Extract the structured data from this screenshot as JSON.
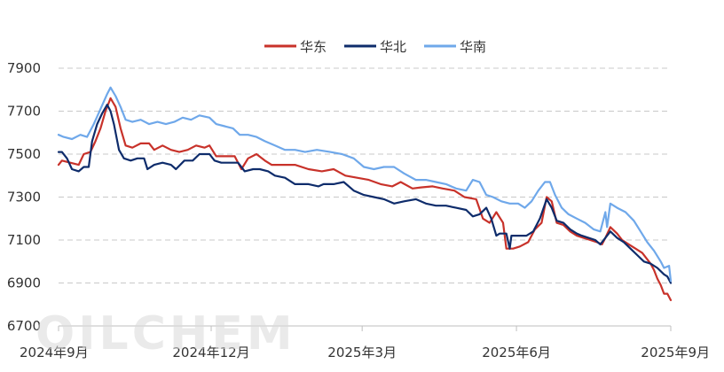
{
  "chart_data": {
    "type": "line",
    "title": "",
    "xlabel": "",
    "ylabel": "",
    "ylim": [
      6700,
      7900
    ],
    "yticks": [
      6700,
      6900,
      7100,
      7300,
      7500,
      7700,
      7900
    ],
    "xlim": [
      "2024-09-01",
      "2025-09-01"
    ],
    "xticks": [
      {
        "date": "2024-09-01",
        "label": "2024年9月"
      },
      {
        "date": "2024-12-01",
        "label": "2024年12月"
      },
      {
        "date": "2025-03-01",
        "label": "2025年3月"
      },
      {
        "date": "2025-06-01",
        "label": "2025年6月"
      },
      {
        "date": "2025-09-01",
        "label": "2025年9月"
      }
    ],
    "grid": "horizontal-dashed",
    "legend_position": "top-center",
    "watermark": "OILCHEM",
    "series": [
      {
        "name": "华东",
        "color": "#c8322a",
        "points": [
          [
            "2024-09-01",
            7450
          ],
          [
            "2024-09-03",
            7470
          ],
          [
            "2024-09-08",
            7460
          ],
          [
            "2024-09-13",
            7450
          ],
          [
            "2024-09-16",
            7500
          ],
          [
            "2024-09-20",
            7510
          ],
          [
            "2024-09-23",
            7560
          ],
          [
            "2024-09-26",
            7620
          ],
          [
            "2024-09-29",
            7700
          ],
          [
            "2024-10-02",
            7760
          ],
          [
            "2024-10-05",
            7720
          ],
          [
            "2024-10-08",
            7620
          ],
          [
            "2024-10-11",
            7540
          ],
          [
            "2024-10-15",
            7530
          ],
          [
            "2024-10-20",
            7550
          ],
          [
            "2024-10-25",
            7550
          ],
          [
            "2024-10-28",
            7520
          ],
          [
            "2024-11-02",
            7540
          ],
          [
            "2024-11-07",
            7520
          ],
          [
            "2024-11-12",
            7510
          ],
          [
            "2024-11-17",
            7520
          ],
          [
            "2024-11-22",
            7540
          ],
          [
            "2024-11-27",
            7530
          ],
          [
            "2024-11-30",
            7540
          ],
          [
            "2024-12-04",
            7490
          ],
          [
            "2024-12-08",
            7490
          ],
          [
            "2024-12-15",
            7490
          ],
          [
            "2024-12-19",
            7430
          ],
          [
            "2024-12-23",
            7480
          ],
          [
            "2024-12-28",
            7500
          ],
          [
            "2025-01-02",
            7470
          ],
          [
            "2025-01-06",
            7450
          ],
          [
            "2025-01-12",
            7450
          ],
          [
            "2025-01-20",
            7450
          ],
          [
            "2025-01-28",
            7430
          ],
          [
            "2025-02-05",
            7420
          ],
          [
            "2025-02-12",
            7430
          ],
          [
            "2025-02-19",
            7400
          ],
          [
            "2025-02-26",
            7390
          ],
          [
            "2025-03-05",
            7380
          ],
          [
            "2025-03-12",
            7360
          ],
          [
            "2025-03-19",
            7350
          ],
          [
            "2025-03-24",
            7370
          ],
          [
            "2025-03-31",
            7340
          ],
          [
            "2025-04-05",
            7345
          ],
          [
            "2025-04-12",
            7350
          ],
          [
            "2025-04-18",
            7340
          ],
          [
            "2025-04-25",
            7330
          ],
          [
            "2025-05-01",
            7300
          ],
          [
            "2025-05-08",
            7290
          ],
          [
            "2025-05-12",
            7200
          ],
          [
            "2025-05-16",
            7180
          ],
          [
            "2025-05-20",
            7230
          ],
          [
            "2025-05-24",
            7180
          ],
          [
            "2025-05-26",
            7060
          ],
          [
            "2025-05-30",
            7060
          ],
          [
            "2025-06-03",
            7070
          ],
          [
            "2025-06-08",
            7090
          ],
          [
            "2025-06-12",
            7150
          ],
          [
            "2025-06-16",
            7180
          ],
          [
            "2025-06-19",
            7300
          ],
          [
            "2025-06-22",
            7280
          ],
          [
            "2025-06-25",
            7180
          ],
          [
            "2025-06-29",
            7170
          ],
          [
            "2025-07-03",
            7140
          ],
          [
            "2025-07-07",
            7120
          ],
          [
            "2025-07-11",
            7110
          ],
          [
            "2025-07-15",
            7100
          ],
          [
            "2025-07-19",
            7090
          ],
          [
            "2025-07-22",
            7080
          ],
          [
            "2025-07-24",
            7110
          ],
          [
            "2025-07-27",
            7160
          ],
          [
            "2025-07-31",
            7130
          ],
          [
            "2025-08-03",
            7100
          ],
          [
            "2025-08-07",
            7080
          ],
          [
            "2025-08-11",
            7060
          ],
          [
            "2025-08-15",
            7040
          ],
          [
            "2025-08-18",
            7010
          ],
          [
            "2025-08-20",
            6990
          ],
          [
            "2025-08-22",
            6960
          ],
          [
            "2025-08-24",
            6920
          ],
          [
            "2025-08-26",
            6890
          ],
          [
            "2025-08-28",
            6850
          ],
          [
            "2025-08-30",
            6850
          ],
          [
            "2025-09-01",
            6820
          ]
        ]
      },
      {
        "name": "华北",
        "color": "#0e2c6b",
        "points": [
          [
            "2024-09-01",
            7510
          ],
          [
            "2024-09-03",
            7510
          ],
          [
            "2024-09-06",
            7480
          ],
          [
            "2024-09-09",
            7430
          ],
          [
            "2024-09-13",
            7420
          ],
          [
            "2024-09-16",
            7440
          ],
          [
            "2024-09-19",
            7440
          ],
          [
            "2024-09-21",
            7560
          ],
          [
            "2024-09-24",
            7640
          ],
          [
            "2024-09-27",
            7690
          ],
          [
            "2024-09-30",
            7730
          ],
          [
            "2024-10-02",
            7700
          ],
          [
            "2024-10-04",
            7640
          ],
          [
            "2024-10-07",
            7520
          ],
          [
            "2024-10-10",
            7480
          ],
          [
            "2024-10-14",
            7470
          ],
          [
            "2024-10-18",
            7480
          ],
          [
            "2024-10-22",
            7480
          ],
          [
            "2024-10-24",
            7430
          ],
          [
            "2024-10-28",
            7450
          ],
          [
            "2024-11-02",
            7460
          ],
          [
            "2024-11-07",
            7450
          ],
          [
            "2024-11-10",
            7430
          ],
          [
            "2024-11-15",
            7470
          ],
          [
            "2024-11-20",
            7470
          ],
          [
            "2024-11-24",
            7500
          ],
          [
            "2024-11-30",
            7500
          ],
          [
            "2024-12-03",
            7470
          ],
          [
            "2024-12-07",
            7460
          ],
          [
            "2024-12-12",
            7460
          ],
          [
            "2024-12-17",
            7460
          ],
          [
            "2024-12-21",
            7420
          ],
          [
            "2024-12-26",
            7430
          ],
          [
            "2024-12-30",
            7430
          ],
          [
            "2025-01-04",
            7420
          ],
          [
            "2025-01-08",
            7400
          ],
          [
            "2025-01-14",
            7390
          ],
          [
            "2025-01-20",
            7360
          ],
          [
            "2025-01-28",
            7360
          ],
          [
            "2025-02-03",
            7350
          ],
          [
            "2025-02-06",
            7360
          ],
          [
            "2025-02-12",
            7360
          ],
          [
            "2025-02-18",
            7370
          ],
          [
            "2025-02-24",
            7330
          ],
          [
            "2025-03-02",
            7310
          ],
          [
            "2025-03-08",
            7300
          ],
          [
            "2025-03-14",
            7290
          ],
          [
            "2025-03-20",
            7270
          ],
          [
            "2025-03-26",
            7280
          ],
          [
            "2025-04-02",
            7290
          ],
          [
            "2025-04-08",
            7270
          ],
          [
            "2025-04-14",
            7260
          ],
          [
            "2025-04-20",
            7260
          ],
          [
            "2025-04-26",
            7250
          ],
          [
            "2025-05-02",
            7240
          ],
          [
            "2025-05-06",
            7210
          ],
          [
            "2025-05-10",
            7220
          ],
          [
            "2025-05-14",
            7250
          ],
          [
            "2025-05-17",
            7200
          ],
          [
            "2025-05-20",
            7120
          ],
          [
            "2025-05-22",
            7130
          ],
          [
            "2025-05-26",
            7130
          ],
          [
            "2025-05-28",
            7060
          ],
          [
            "2025-05-29",
            7120
          ],
          [
            "2025-06-03",
            7120
          ],
          [
            "2025-06-07",
            7120
          ],
          [
            "2025-06-11",
            7140
          ],
          [
            "2025-06-15",
            7200
          ],
          [
            "2025-06-19",
            7290
          ],
          [
            "2025-06-22",
            7250
          ],
          [
            "2025-06-25",
            7190
          ],
          [
            "2025-06-29",
            7180
          ],
          [
            "2025-07-03",
            7150
          ],
          [
            "2025-07-07",
            7130
          ],
          [
            "2025-07-10",
            7120
          ],
          [
            "2025-07-14",
            7110
          ],
          [
            "2025-07-18",
            7100
          ],
          [
            "2025-07-21",
            7080
          ],
          [
            "2025-07-24",
            7110
          ],
          [
            "2025-07-27",
            7140
          ],
          [
            "2025-07-31",
            7110
          ],
          [
            "2025-08-04",
            7090
          ],
          [
            "2025-08-08",
            7060
          ],
          [
            "2025-08-12",
            7030
          ],
          [
            "2025-08-16",
            7000
          ],
          [
            "2025-08-20",
            6990
          ],
          [
            "2025-08-24",
            6970
          ],
          [
            "2025-08-28",
            6940
          ],
          [
            "2025-08-30",
            6930
          ],
          [
            "2025-09-01",
            6900
          ]
        ]
      },
      {
        "name": "华南",
        "color": "#6fa8ea",
        "points": [
          [
            "2024-09-01",
            7590
          ],
          [
            "2024-09-04",
            7580
          ],
          [
            "2024-09-09",
            7570
          ],
          [
            "2024-09-14",
            7590
          ],
          [
            "2024-09-18",
            7580
          ],
          [
            "2024-09-22",
            7640
          ],
          [
            "2024-09-26",
            7710
          ],
          [
            "2024-09-30",
            7780
          ],
          [
            "2024-10-02",
            7810
          ],
          [
            "2024-10-05",
            7770
          ],
          [
            "2024-10-08",
            7720
          ],
          [
            "2024-10-11",
            7660
          ],
          [
            "2024-10-15",
            7650
          ],
          [
            "2024-10-20",
            7660
          ],
          [
            "2024-10-25",
            7640
          ],
          [
            "2024-10-30",
            7650
          ],
          [
            "2024-11-04",
            7640
          ],
          [
            "2024-11-09",
            7650
          ],
          [
            "2024-11-14",
            7670
          ],
          [
            "2024-11-19",
            7660
          ],
          [
            "2024-11-24",
            7680
          ],
          [
            "2024-11-30",
            7670
          ],
          [
            "2024-12-04",
            7640
          ],
          [
            "2024-12-09",
            7630
          ],
          [
            "2024-12-14",
            7620
          ],
          [
            "2024-12-18",
            7590
          ],
          [
            "2024-12-23",
            7590
          ],
          [
            "2024-12-28",
            7580
          ],
          [
            "2025-01-02",
            7560
          ],
          [
            "2025-01-08",
            7540
          ],
          [
            "2025-01-14",
            7520
          ],
          [
            "2025-01-20",
            7520
          ],
          [
            "2025-01-26",
            7510
          ],
          [
            "2025-02-02",
            7520
          ],
          [
            "2025-02-10",
            7510
          ],
          [
            "2025-02-17",
            7500
          ],
          [
            "2025-02-24",
            7480
          ],
          [
            "2025-03-02",
            7440
          ],
          [
            "2025-03-08",
            7430
          ],
          [
            "2025-03-14",
            7440
          ],
          [
            "2025-03-20",
            7440
          ],
          [
            "2025-03-26",
            7410
          ],
          [
            "2025-04-02",
            7380
          ],
          [
            "2025-04-08",
            7380
          ],
          [
            "2025-04-14",
            7370
          ],
          [
            "2025-04-20",
            7360
          ],
          [
            "2025-04-26",
            7340
          ],
          [
            "2025-05-02",
            7330
          ],
          [
            "2025-05-06",
            7380
          ],
          [
            "2025-05-10",
            7370
          ],
          [
            "2025-05-14",
            7310
          ],
          [
            "2025-05-18",
            7300
          ],
          [
            "2025-05-23",
            7280
          ],
          [
            "2025-05-28",
            7270
          ],
          [
            "2025-06-02",
            7270
          ],
          [
            "2025-06-06",
            7250
          ],
          [
            "2025-06-10",
            7280
          ],
          [
            "2025-06-14",
            7330
          ],
          [
            "2025-06-18",
            7370
          ],
          [
            "2025-06-21",
            7370
          ],
          [
            "2025-06-24",
            7310
          ],
          [
            "2025-06-28",
            7250
          ],
          [
            "2025-07-02",
            7220
          ],
          [
            "2025-07-07",
            7200
          ],
          [
            "2025-07-12",
            7180
          ],
          [
            "2025-07-17",
            7150
          ],
          [
            "2025-07-21",
            7140
          ],
          [
            "2025-07-24",
            7230
          ],
          [
            "2025-07-25",
            7160
          ],
          [
            "2025-07-27",
            7270
          ],
          [
            "2025-07-31",
            7250
          ],
          [
            "2025-08-05",
            7230
          ],
          [
            "2025-08-10",
            7190
          ],
          [
            "2025-08-14",
            7140
          ],
          [
            "2025-08-18",
            7090
          ],
          [
            "2025-08-22",
            7050
          ],
          [
            "2025-08-26",
            7000
          ],
          [
            "2025-08-28",
            6970
          ],
          [
            "2025-08-31",
            6980
          ],
          [
            "2025-09-01",
            6910
          ]
        ]
      }
    ]
  }
}
